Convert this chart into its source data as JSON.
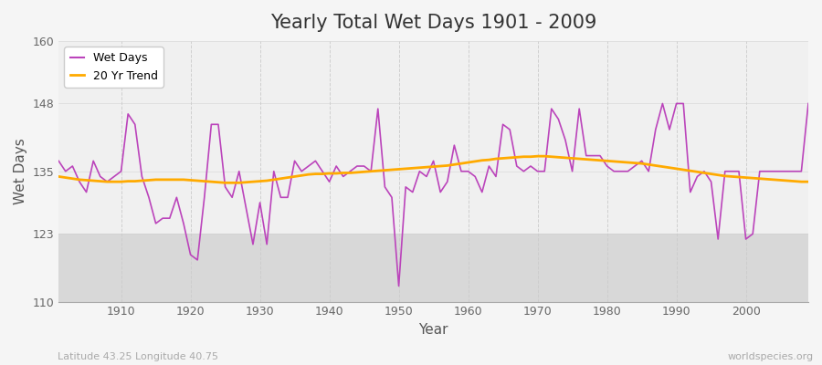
{
  "title": "Yearly Total Wet Days 1901 - 2009",
  "xlabel": "Year",
  "ylabel": "Wet Days",
  "subtitle_left": "Latitude 43.25 Longitude 40.75",
  "subtitle_right": "worldspecies.org",
  "ylim": [
    110,
    160
  ],
  "yticks": [
    110,
    123,
    135,
    148,
    160
  ],
  "xlim": [
    1901,
    2009
  ],
  "xticks": [
    1910,
    1920,
    1930,
    1940,
    1950,
    1960,
    1970,
    1980,
    1990,
    2000
  ],
  "wet_days_color": "#bb44bb",
  "trend_color": "#ffaa00",
  "plot_bg_upper": "#f0f0f0",
  "plot_bg_lower": "#d8d8d8",
  "fig_bg": "#f5f5f5",
  "legend_labels": [
    "Wet Days",
    "20 Yr Trend"
  ],
  "years": [
    1901,
    1902,
    1903,
    1904,
    1905,
    1906,
    1907,
    1908,
    1909,
    1910,
    1911,
    1912,
    1913,
    1914,
    1915,
    1916,
    1917,
    1918,
    1919,
    1920,
    1921,
    1922,
    1923,
    1924,
    1925,
    1926,
    1927,
    1928,
    1929,
    1930,
    1931,
    1932,
    1933,
    1934,
    1935,
    1936,
    1937,
    1938,
    1939,
    1940,
    1941,
    1942,
    1943,
    1944,
    1945,
    1946,
    1947,
    1948,
    1949,
    1950,
    1951,
    1952,
    1953,
    1954,
    1955,
    1956,
    1957,
    1958,
    1959,
    1960,
    1961,
    1962,
    1963,
    1964,
    1965,
    1966,
    1967,
    1968,
    1969,
    1970,
    1971,
    1972,
    1973,
    1974,
    1975,
    1976,
    1977,
    1978,
    1979,
    1980,
    1981,
    1982,
    1983,
    1984,
    1985,
    1986,
    1987,
    1988,
    1989,
    1990,
    1991,
    1992,
    1993,
    1994,
    1995,
    1996,
    1997,
    1998,
    1999,
    2000,
    2001,
    2002,
    2003,
    2004,
    2005,
    2006,
    2007,
    2008,
    2009
  ],
  "wet_days": [
    137,
    135,
    136,
    133,
    131,
    137,
    134,
    133,
    134,
    135,
    146,
    144,
    134,
    130,
    125,
    126,
    126,
    130,
    125,
    119,
    118,
    130,
    144,
    144,
    132,
    130,
    135,
    128,
    121,
    129,
    121,
    135,
    130,
    130,
    137,
    135,
    136,
    137,
    135,
    133,
    136,
    134,
    135,
    136,
    136,
    135,
    147,
    132,
    130,
    113,
    132,
    131,
    135,
    134,
    137,
    131,
    133,
    140,
    135,
    135,
    134,
    131,
    136,
    134,
    144,
    143,
    136,
    135,
    136,
    135,
    135,
    147,
    145,
    141,
    135,
    147,
    138,
    138,
    138,
    136,
    135,
    135,
    135,
    136,
    137,
    135,
    143,
    148,
    143,
    148,
    148,
    131,
    134,
    135,
    133,
    122,
    135,
    135,
    135,
    122,
    123,
    135,
    135,
    135,
    135,
    135,
    135,
    135,
    148
  ],
  "trend": [
    134.0,
    133.8,
    133.6,
    133.4,
    133.3,
    133.2,
    133.1,
    133.0,
    133.0,
    133.0,
    133.1,
    133.1,
    133.2,
    133.3,
    133.4,
    133.4,
    133.4,
    133.4,
    133.4,
    133.3,
    133.2,
    133.1,
    133.0,
    132.9,
    132.8,
    132.8,
    132.8,
    132.9,
    133.0,
    133.1,
    133.2,
    133.4,
    133.6,
    133.8,
    134.0,
    134.2,
    134.4,
    134.5,
    134.5,
    134.6,
    134.6,
    134.7,
    134.7,
    134.8,
    134.9,
    135.0,
    135.1,
    135.2,
    135.3,
    135.4,
    135.5,
    135.6,
    135.7,
    135.8,
    135.9,
    136.0,
    136.1,
    136.3,
    136.5,
    136.7,
    136.9,
    137.1,
    137.2,
    137.4,
    137.5,
    137.6,
    137.7,
    137.8,
    137.8,
    137.9,
    137.9,
    137.8,
    137.7,
    137.6,
    137.5,
    137.4,
    137.3,
    137.2,
    137.1,
    137.0,
    136.9,
    136.8,
    136.7,
    136.6,
    136.5,
    136.3,
    136.1,
    135.9,
    135.7,
    135.5,
    135.3,
    135.1,
    134.9,
    134.7,
    134.5,
    134.3,
    134.1,
    134.0,
    133.9,
    133.8,
    133.7,
    133.6,
    133.5,
    133.4,
    133.3,
    133.2,
    133.1,
    133.0,
    133.0
  ]
}
